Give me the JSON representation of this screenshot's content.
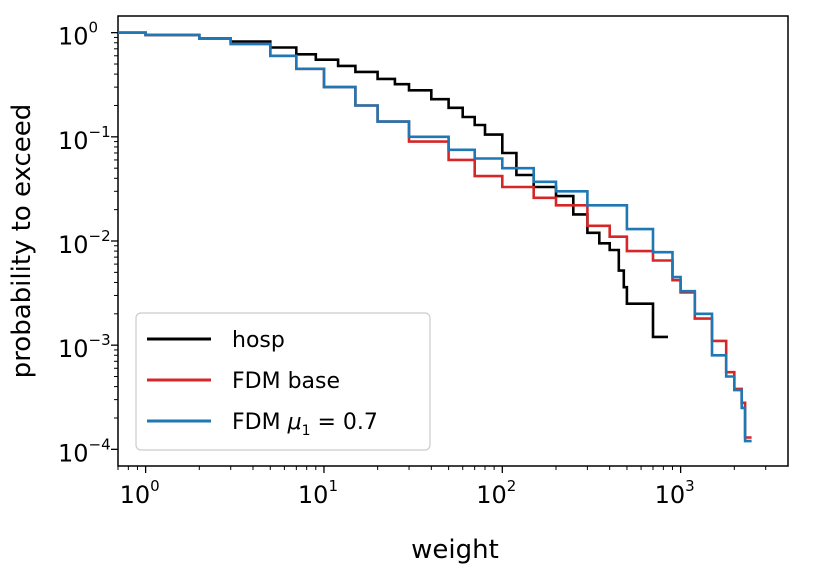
{
  "chart_data": {
    "type": "line",
    "xscale": "log",
    "yscale": "log",
    "xlabel": "weight",
    "ylabel": "probability to exceed",
    "xlim": [
      0.7,
      4000
    ],
    "ylim": [
      0.0001,
      1.0
    ],
    "xticks": [
      {
        "value": 1,
        "base": "10",
        "exp": "0"
      },
      {
        "value": 10,
        "base": "10",
        "exp": "1"
      },
      {
        "value": 100,
        "base": "10",
        "exp": "2"
      },
      {
        "value": 1000,
        "base": "10",
        "exp": "3"
      }
    ],
    "yticks": [
      {
        "value": 1,
        "base": "10",
        "exp": "0"
      },
      {
        "value": 0.1,
        "base": "10",
        "exp": "−1"
      },
      {
        "value": 0.01,
        "base": "10",
        "exp": "−2"
      },
      {
        "value": 0.001,
        "base": "10",
        "exp": "−3"
      },
      {
        "value": 0.0001,
        "base": "10",
        "exp": "−4"
      }
    ],
    "legend_position": "lower-left",
    "series": [
      {
        "name": "hosp",
        "label": "hosp",
        "color": "#000000",
        "step": true,
        "x": [
          0.7,
          1,
          2,
          3,
          5,
          7,
          9,
          12,
          15,
          20,
          25,
          30,
          40,
          50,
          60,
          70,
          80,
          100,
          120,
          150,
          200,
          250,
          300,
          350,
          400,
          450,
          480,
          500,
          700,
          850
        ],
        "y": [
          1.0,
          0.95,
          0.88,
          0.82,
          0.72,
          0.62,
          0.55,
          0.48,
          0.42,
          0.36,
          0.32,
          0.28,
          0.23,
          0.19,
          0.155,
          0.13,
          0.105,
          0.07,
          0.043,
          0.033,
          0.027,
          0.018,
          0.012,
          0.0095,
          0.0082,
          0.0052,
          0.0036,
          0.0025,
          0.0012,
          0.0012
        ]
      },
      {
        "name": "FDM base",
        "label": "FDM base",
        "color": "#d62728",
        "step": true,
        "x": [
          0.7,
          1,
          2,
          3,
          5,
          7,
          10,
          15,
          20,
          30,
          50,
          70,
          100,
          150,
          200,
          300,
          400,
          500,
          700,
          900,
          1000,
          1200,
          1500,
          1800,
          2000,
          2200,
          2300,
          2500
        ],
        "y": [
          1.0,
          0.95,
          0.88,
          0.78,
          0.6,
          0.45,
          0.3,
          0.2,
          0.14,
          0.09,
          0.06,
          0.042,
          0.033,
          0.026,
          0.022,
          0.014,
          0.011,
          0.008,
          0.0065,
          0.0042,
          0.0032,
          0.0018,
          0.0011,
          0.00055,
          0.00038,
          0.00028,
          0.00013,
          0.00013
        ]
      },
      {
        "name": "FDM mu1 0.7",
        "label_prefix": "FDM ",
        "label_symbol": "μ",
        "label_sub": "1",
        "label_suffix": " = 0.7",
        "color": "#1f77b4",
        "step": true,
        "x": [
          0.7,
          1,
          2,
          3,
          5,
          7,
          10,
          15,
          20,
          30,
          50,
          70,
          100,
          150,
          200,
          300,
          500,
          700,
          900,
          1000,
          1200,
          1500,
          1800,
          2000,
          2200,
          2300,
          2500
        ],
        "y": [
          1.0,
          0.95,
          0.88,
          0.78,
          0.6,
          0.45,
          0.3,
          0.2,
          0.14,
          0.1,
          0.075,
          0.062,
          0.05,
          0.037,
          0.03,
          0.022,
          0.013,
          0.0078,
          0.0045,
          0.0033,
          0.002,
          0.0008,
          0.0005,
          0.00037,
          0.00025,
          0.00012,
          0.00012
        ]
      }
    ]
  }
}
